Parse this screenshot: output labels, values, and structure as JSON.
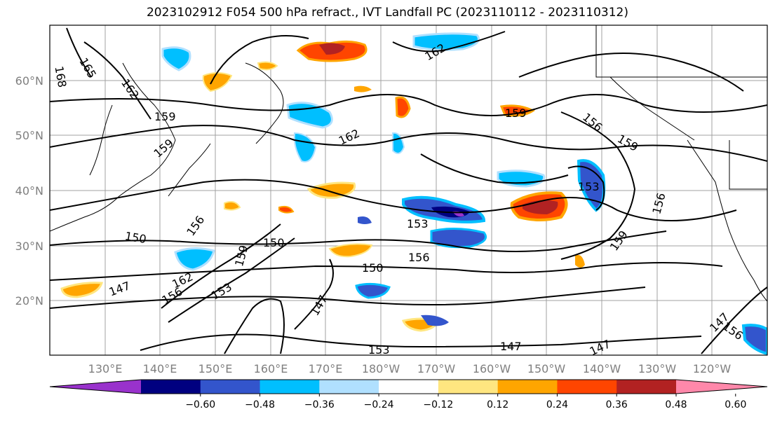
{
  "title": "2023102912 F054 500 hPa refract., IVT Landfall PC (2023110112 - 2023110312)",
  "lat_ticks": [
    "60°N",
    "50°N",
    "40°N",
    "30°N",
    "20°N"
  ],
  "lon_ticks": [
    "130°E",
    "140°E",
    "150°E",
    "160°E",
    "170°E",
    "180°W",
    "170°W",
    "160°W",
    "150°W",
    "140°W",
    "130°W",
    "120°W"
  ],
  "contour_labels": [
    "168",
    "165",
    "162",
    "159",
    "159",
    "162",
    "150",
    "156",
    "150",
    "159",
    "147",
    "162",
    "156",
    "153",
    "150",
    "147",
    "153",
    "156",
    "153",
    "159",
    "156",
    "153",
    "147",
    "147",
    "156",
    "159",
    "159",
    "162",
    "156",
    "147"
  ],
  "colorbar": {
    "tick_labels": [
      "−0.60",
      "−0.48",
      "−0.36",
      "−0.24",
      "−0.12",
      "0.12",
      "0.24",
      "0.36",
      "0.48",
      "0.60"
    ],
    "colors": [
      "#9932cc",
      "#000080",
      "#3355cc",
      "#00bfff",
      "#b0e0ff",
      "#ffffff",
      "#ffe680",
      "#ffa500",
      "#ff4500",
      "#b22222",
      "#ff88aa"
    ]
  }
}
